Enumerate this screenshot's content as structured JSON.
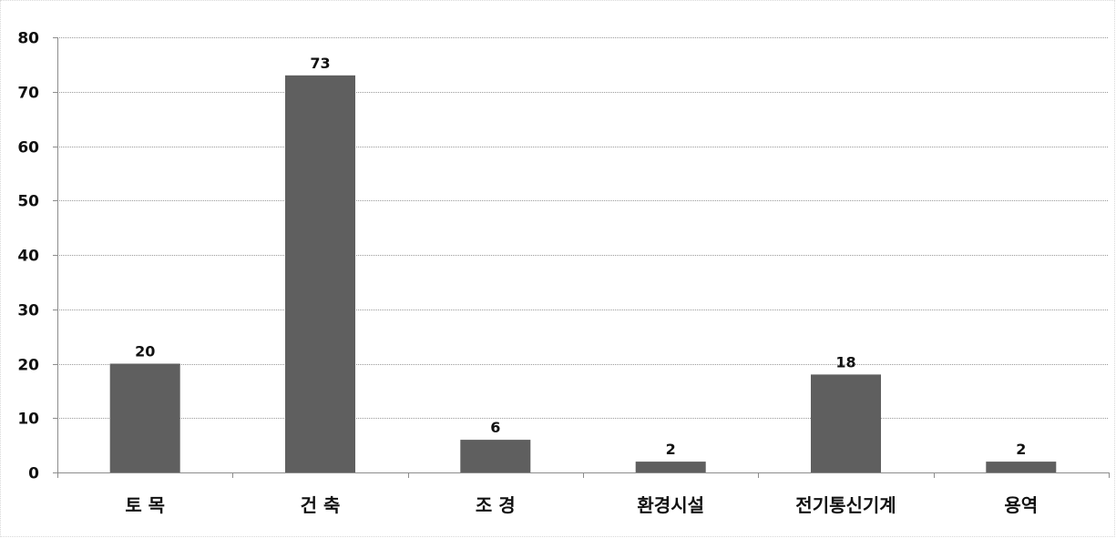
{
  "chart_data": {
    "type": "bar",
    "title": "",
    "xlabel": "",
    "ylabel": "",
    "categories": [
      "토 목",
      "건 축",
      "조 경",
      "환경시설",
      "전기통신기계",
      "용역"
    ],
    "values": [
      20,
      73,
      6,
      2,
      18,
      2
    ],
    "data_labels": [
      "20",
      "73",
      "6",
      "2",
      "18",
      "2"
    ],
    "ylim": [
      0,
      80
    ],
    "yticks": [
      0,
      10,
      20,
      30,
      40,
      50,
      60,
      70,
      80
    ],
    "grid": true,
    "legend": "none",
    "bar_color": "#5f5f5f"
  }
}
